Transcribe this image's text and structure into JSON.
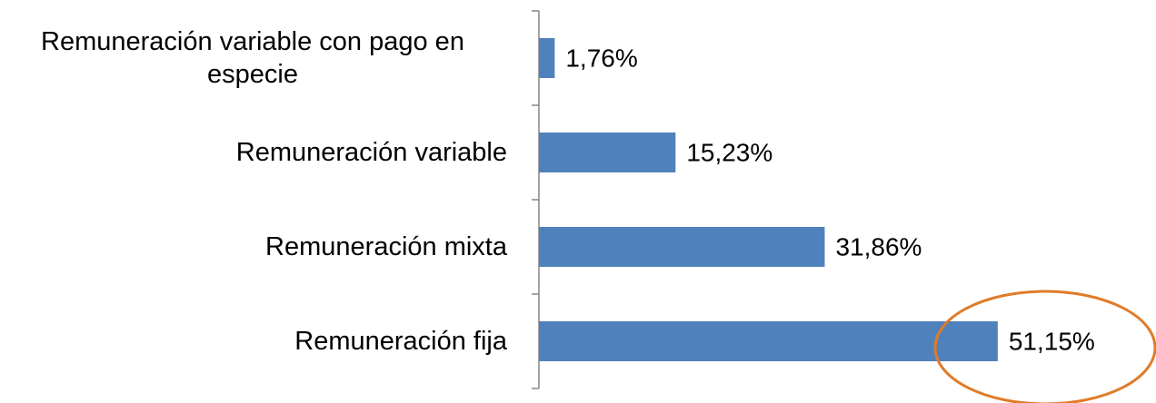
{
  "chart_data": {
    "type": "bar",
    "orientation": "horizontal",
    "categories": [
      "Remuneración variable con pago en especie",
      "Remuneración variable",
      "Remuneración mixta",
      "Remuneración fija"
    ],
    "values": [
      1.76,
      15.23,
      31.86,
      51.15
    ],
    "value_labels": [
      "1,76%",
      "15,23%",
      "31,86%",
      "51,15%"
    ],
    "color": "#4f81bd"
  }
}
